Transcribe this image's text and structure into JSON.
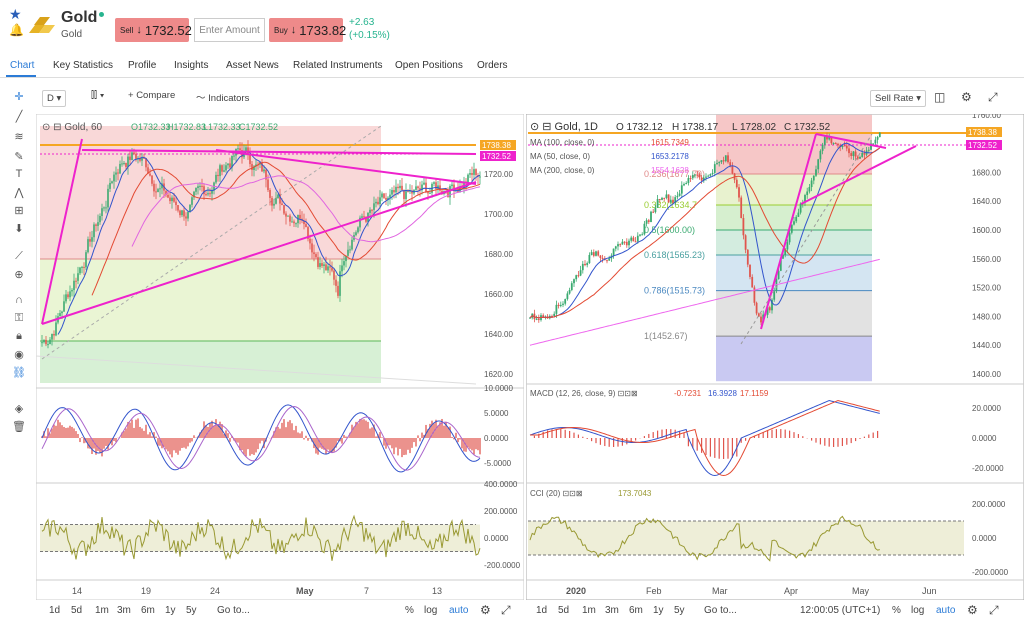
{
  "asset": {
    "name": "Gold",
    "subtitle": "Gold",
    "sell_label": "Sell",
    "sell_price": "1732.52",
    "amount_placeholder": "Enter Amount",
    "buy_label": "Buy",
    "buy_price": "1733.82",
    "change": "+2.63",
    "change_pct": "(+0.15%)"
  },
  "tabs": [
    "Chart",
    "Key Statistics",
    "Profile",
    "Insights",
    "Asset News",
    "Related Instruments",
    "Open Positions",
    "Orders"
  ],
  "toolbar": {
    "interval": "D",
    "compare": "Compare",
    "indicators": "Indicators",
    "sell_rate": "Sell Rate"
  },
  "left": {
    "title": "Gold, 60",
    "ohlc": [
      "1732.33",
      "1732.83",
      "1732.33",
      "1732.52"
    ],
    "price_ticks": [
      "1720.00",
      "1700.00",
      "1680.00",
      "1660.00",
      "1640.00",
      "1620.00"
    ],
    "tag_top": "1738.38",
    "tag_mid": "1732.52",
    "macd_ticks": [
      "10.0000",
      "5.0000",
      "0.0000",
      "-5.0000"
    ],
    "cci_ticks": [
      "400.0000",
      "200.0000",
      "0.0000",
      "-200.0000"
    ],
    "dates": [
      "14",
      "19",
      "24",
      "May",
      "7",
      "13"
    ]
  },
  "right": {
    "title": "Gold, 1D",
    "ohlc": [
      "O 1732.12",
      "H 1738.17",
      "L 1728.02",
      "C 1732.52"
    ],
    "mas": [
      {
        "label": "MA (100, close, 0)",
        "value": "1615.7349"
      },
      {
        "label": "MA (50, close, 0)",
        "value": "1653.2178"
      },
      {
        "label": "MA (200, close, 0)",
        "value": "1554.1628"
      }
    ],
    "fib": [
      {
        "label": "0.236(1677.79)"
      },
      {
        "label": "0.382(1634.7"
      },
      {
        "label": "0.5(1600.00)"
      },
      {
        "label": "0.618(1565.23)"
      },
      {
        "label": "0.786(1515.73)"
      },
      {
        "label": "1(1452.67)"
      }
    ],
    "price_ticks": [
      "1760.00",
      "1720.00",
      "1680.00",
      "1640.00",
      "1600.00",
      "1560.00",
      "1520.00",
      "1480.00",
      "1440.00",
      "1400.00"
    ],
    "tag_top": "1738.38",
    "tag_mid": "1732.52",
    "macd": {
      "label": "MACD (12, 26, close, 9)",
      "v1": "-0.7231",
      "v2": "16.3928",
      "v3": "17.1159"
    },
    "macd_ticks": [
      "20.0000",
      "0.0000",
      "-20.0000"
    ],
    "cci": {
      "label": "CCI (20)",
      "value": "173.7043"
    },
    "cci_ticks": [
      "200.0000",
      "0.0000",
      "-200.0000"
    ],
    "dates": [
      "2020",
      "Feb",
      "Mar",
      "Apr",
      "May",
      "Jun"
    ]
  },
  "bottom_left": {
    "ranges": [
      "1d",
      "5d",
      "1m",
      "3m",
      "6m",
      "1y",
      "5y"
    ],
    "goto": "Go to...",
    "pct": "%",
    "log": "log",
    "auto": "auto"
  },
  "bottom_right": {
    "ranges": [
      "1d",
      "5d",
      "1m",
      "3m",
      "6m",
      "1y",
      "5y"
    ],
    "goto": "Go to...",
    "time": "12:00:05 (UTC+1)",
    "pct": "%",
    "log": "log",
    "auto": "auto"
  },
  "colors": {
    "accent": "#2b7bd6",
    "sell": "#ee8a8a",
    "up": "#27b48f",
    "magenta": "#ee22cc"
  }
}
